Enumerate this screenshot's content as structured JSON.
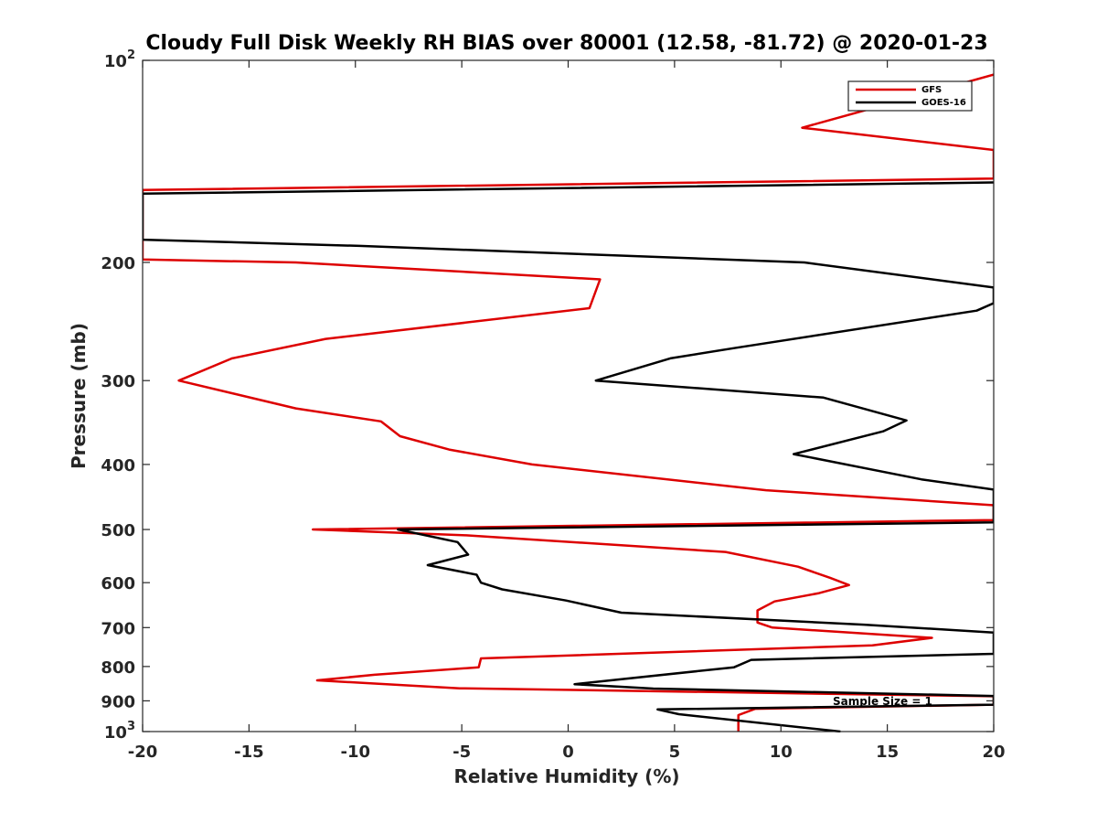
{
  "chart_data": {
    "type": "line",
    "title": "Cloudy Full Disk Weekly RH BIAS over 80001 (12.58, -81.72) @ 2020-01-23",
    "xlabel": "Relative Humidity (%)",
    "ylabel": "Pressure (mb)",
    "xlim": [
      -20,
      20
    ],
    "ylim": [
      100,
      1000
    ],
    "y_scale": "log",
    "y_reversed": true,
    "x_ticks": [
      "-20",
      "-15",
      "-10",
      "-5",
      "0",
      "5",
      "10",
      "15",
      "20"
    ],
    "x_tick_values": [
      -20,
      -15,
      -10,
      -5,
      0,
      5,
      10,
      15,
      20
    ],
    "y_ticks": [
      {
        "value": 100,
        "base": "10",
        "exp": "2"
      },
      {
        "value": 200,
        "label": "200"
      },
      {
        "value": 300,
        "label": "300"
      },
      {
        "value": 400,
        "label": "400"
      },
      {
        "value": 500,
        "label": "500"
      },
      {
        "value": 600,
        "label": "600"
      },
      {
        "value": 700,
        "label": "700"
      },
      {
        "value": 800,
        "label": "800"
      },
      {
        "value": 900,
        "label": "900"
      },
      {
        "value": 1000,
        "base": "10",
        "exp": "3"
      }
    ],
    "legend": "top-right",
    "grid": false,
    "annotation": "Sample Size = 1",
    "series": [
      {
        "name": "GFS",
        "color": "#dd0000",
        "points": [
          [
            20,
            105
          ],
          [
            11,
            126
          ],
          [
            20,
            136
          ],
          [
            20,
            150
          ],
          [
            -20,
            156
          ],
          [
            -20,
            198
          ],
          [
            -12.8,
            200
          ],
          [
            1.5,
            212
          ],
          [
            1,
            234
          ],
          [
            -11.4,
            260
          ],
          [
            -15.8,
            278
          ],
          [
            -18.3,
            300
          ],
          [
            -12.8,
            330
          ],
          [
            -8.8,
            345
          ],
          [
            -7.9,
            363
          ],
          [
            -5.6,
            380
          ],
          [
            -1.7,
            400
          ],
          [
            9.3,
            437
          ],
          [
            20,
            460
          ],
          [
            20,
            484
          ],
          [
            -12,
            500
          ],
          [
            -4.8,
            510
          ],
          [
            7.4,
            540
          ],
          [
            10.8,
            568
          ],
          [
            12.3,
            590
          ],
          [
            13.2,
            605
          ],
          [
            11.8,
            622
          ],
          [
            9.7,
            640
          ],
          [
            8.9,
            660
          ],
          [
            8.9,
            688
          ],
          [
            9.6,
            700
          ],
          [
            17.1,
            725
          ],
          [
            14.3,
            744
          ],
          [
            -4.1,
            778
          ],
          [
            -4.2,
            802
          ],
          [
            -9.1,
            823
          ],
          [
            -11.8,
            839
          ],
          [
            -5.1,
            862
          ],
          [
            20,
            886
          ],
          [
            20,
            905
          ],
          [
            20,
            912
          ],
          [
            8.8,
            925
          ],
          [
            8,
            945
          ],
          [
            8,
            1000
          ]
        ]
      },
      {
        "name": "GOES-16",
        "color": "#000000",
        "points": [
          [
            20,
            152
          ],
          [
            -20,
            158
          ],
          [
            -20,
            185
          ],
          [
            -9.8,
            189
          ],
          [
            11.1,
            200
          ],
          [
            20,
            218
          ],
          [
            20,
            230
          ],
          [
            19.2,
            236
          ],
          [
            7.9,
            268
          ],
          [
            4.8,
            278
          ],
          [
            1.3,
            300
          ],
          [
            12,
            318
          ],
          [
            15.9,
            344
          ],
          [
            14.8,
            357
          ],
          [
            10.6,
            386
          ],
          [
            16.6,
            421
          ],
          [
            20,
            436
          ],
          [
            20,
            488
          ],
          [
            -8,
            500
          ],
          [
            -5.2,
            522
          ],
          [
            -4.7,
            545
          ],
          [
            -6.6,
            565
          ],
          [
            -4.3,
            584
          ],
          [
            -4.1,
            600
          ],
          [
            -3.1,
            614
          ],
          [
            -0.1,
            638
          ],
          [
            2.5,
            665
          ],
          [
            13.9,
            693
          ],
          [
            20,
            712
          ],
          [
            20,
            766
          ],
          [
            8.6,
            782
          ],
          [
            7.8,
            802
          ],
          [
            0.3,
            850
          ],
          [
            4,
            863
          ],
          [
            20,
            885
          ],
          [
            20,
            893
          ],
          [
            20,
            912
          ],
          [
            4.2,
            927
          ],
          [
            5.2,
            942
          ],
          [
            12.8,
            1000
          ]
        ]
      }
    ]
  }
}
